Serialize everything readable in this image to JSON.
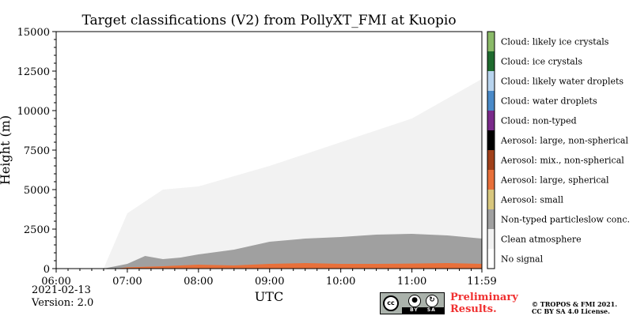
{
  "chart_data": {
    "type": "heatmap",
    "title": "Target classifications (V2) from PollyXT_FMI at Kuopio",
    "xlabel": "UTC",
    "ylabel": "Height (m)",
    "x_range": [
      "06:00",
      "11:59"
    ],
    "ylim": [
      0,
      15000
    ],
    "x_ticks": [
      "06:00",
      "07:00",
      "08:00",
      "09:00",
      "10:00",
      "11:00",
      "11:59"
    ],
    "y_ticks": [
      0,
      2500,
      5000,
      7500,
      10000,
      12500,
      15000
    ],
    "colorbar": [
      {
        "label": "No signal",
        "color": "#ffffff"
      },
      {
        "label": "Clean atmosphere",
        "color": "#f2f2f2"
      },
      {
        "label": "Non-typed particleslow conc.",
        "color": "#a0a0a0"
      },
      {
        "label": "Aerosol: small",
        "color": "#d8c77e"
      },
      {
        "label": "Aerosol: large, spherical",
        "color": "#e8703a"
      },
      {
        "label": "Aerosol: mix., non-spherical",
        "color": "#a0401a"
      },
      {
        "label": "Aerosol: large, non-spherical",
        "color": "#000000"
      },
      {
        "label": "Cloud: non-typed",
        "color": "#7a2a8a"
      },
      {
        "label": "Cloud: water droplets",
        "color": "#4a8ac8"
      },
      {
        "label": "Cloud: likely water droplets",
        "color": "#b8d4ee"
      },
      {
        "label": "Cloud: ice crystals",
        "color": "#1f6b2e"
      },
      {
        "label": "Cloud: likely ice crystals",
        "color": "#8aba68"
      }
    ],
    "layers": {
      "particle_top_m": [
        [
          "06:00",
          0
        ],
        [
          "06:40",
          0
        ],
        [
          "07:00",
          300
        ],
        [
          "07:15",
          800
        ],
        [
          "07:30",
          600
        ],
        [
          "07:45",
          700
        ],
        [
          "08:00",
          900
        ],
        [
          "08:30",
          1200
        ],
        [
          "09:00",
          1700
        ],
        [
          "09:30",
          1900
        ],
        [
          "10:00",
          2000
        ],
        [
          "10:30",
          2150
        ],
        [
          "11:00",
          2200
        ],
        [
          "11:30",
          2100
        ],
        [
          "11:59",
          1900
        ]
      ],
      "spherical_aerosol_top_m": [
        [
          "06:00",
          0
        ],
        [
          "06:50",
          0
        ],
        [
          "07:00",
          80
        ],
        [
          "07:30",
          150
        ],
        [
          "08:00",
          250
        ],
        [
          "08:30",
          200
        ],
        [
          "09:00",
          300
        ],
        [
          "09:30",
          350
        ],
        [
          "10:00",
          300
        ],
        [
          "10:30",
          300
        ],
        [
          "11:00",
          320
        ],
        [
          "11:30",
          350
        ],
        [
          "11:59",
          300
        ]
      ],
      "clean_atmosphere_top_m": [
        [
          "06:00",
          0
        ],
        [
          "06:40",
          0
        ],
        [
          "07:00",
          3500
        ],
        [
          "07:30",
          5000
        ],
        [
          "08:00",
          5200
        ],
        [
          "09:00",
          6500
        ],
        [
          "10:00",
          8000
        ],
        [
          "11:00",
          9500
        ],
        [
          "11:59",
          12000
        ]
      ]
    }
  },
  "footer": {
    "date": "2021-02-13",
    "version": "Version: 2.0",
    "license_badge": {
      "cc": "cc",
      "by": "BY",
      "sa": "SA"
    },
    "preliminary_line1": "Preliminary",
    "preliminary_line2": "Results.",
    "copyright_line1": "© TROPOS & FMI 2021.",
    "copyright_line2": "CC BY SA 4.0 License."
  }
}
